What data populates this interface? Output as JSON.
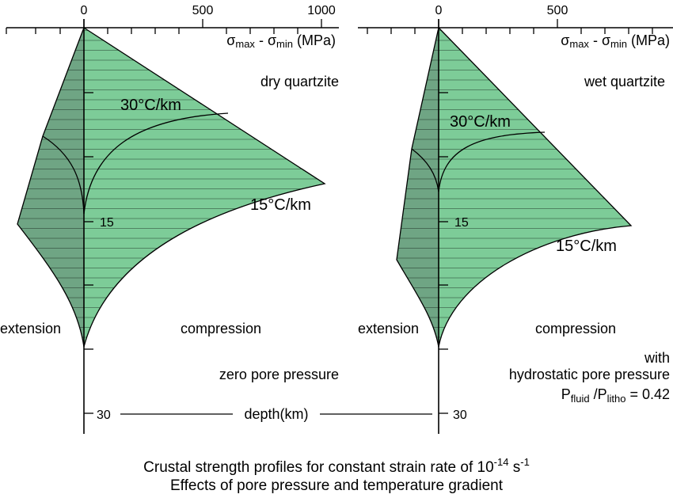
{
  "figure": {
    "caption_line1_prefix": "Crustal strength profiles for constant strain rate of 10",
    "caption_line1_exp": "-14",
    "caption_line1_unit": " s",
    "caption_line1_unit_exp": "-1",
    "caption_line2": "Effects of pore pressure and temperature gradient",
    "depth_label": "depth(km)",
    "depth_ticks": [
      "15",
      "30"
    ],
    "x_ticks_left": [
      "0",
      "500",
      "1000"
    ],
    "x_ticks_right": [
      "0",
      "500"
    ],
    "colors": {
      "fill": "#7dcc98",
      "extension_fill": "#6fa584",
      "line": "#000000"
    }
  },
  "panels": [
    {
      "axis_sigma": "σ",
      "axis_sub_max": "max",
      "axis_sub_min": "min",
      "axis_unit": " (MPa)",
      "material": "dry quartzite",
      "gradient_high": "30°C/km",
      "gradient_low": "15°C/km",
      "label_extension": "extension",
      "label_compression": "compression",
      "condition_line1": "zero pore pressure"
    },
    {
      "axis_sigma": "σ",
      "axis_sub_max": "max",
      "axis_sub_min": "min",
      "axis_unit": " (MPa)",
      "material": "wet quartzite",
      "gradient_high": "30°C/km",
      "gradient_low": "15°C/km",
      "label_extension": "extension",
      "label_compression": "compression",
      "condition_line1": "with",
      "condition_line2": "hydrostatic pore pressure",
      "ratio_P": "P",
      "ratio_sub_fluid": "fluid",
      "ratio_slash": " /P",
      "ratio_sub_litho": "litho",
      "ratio_value": " = 0.42"
    }
  ]
}
